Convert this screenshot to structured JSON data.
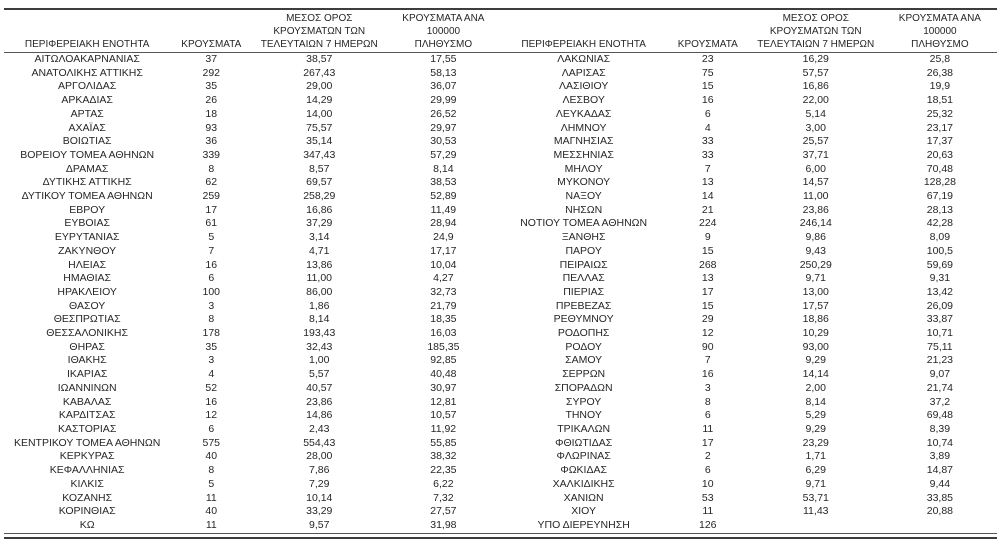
{
  "colors": {
    "text": "#262626",
    "thin_line": "#565656",
    "thick_line": "#3d3d3d",
    "background": "#ffffff"
  },
  "tables": [
    {
      "headers": [
        "ΠΕΡΙΦΕΡΕΙΑΚΗ ΕΝΟΤΗΤΑ",
        "ΚΡΟΥΣΜΑΤΑ",
        "ΜΕΣΟΣ ΟΡΟΣ\nΚΡΟΥΣΜΑΤΩΝ ΤΩΝ\nΤΕΛΕΥΤΑΙΩΝ 7 ΗΜΕΡΩΝ",
        "ΚΡΟΥΣΜΑΤΑ ΑΝΑ 100000\nΠΛΗΘΥΣΜΟ"
      ],
      "rows": [
        [
          "ΑΙΤΩΛΟΑΚΑΡΝΑΝΙΑΣ",
          "37",
          "38,57",
          "17,55"
        ],
        [
          "ΑΝΑΤΟΛΙΚΗΣ ΑΤΤΙΚΗΣ",
          "292",
          "267,43",
          "58,13"
        ],
        [
          "ΑΡΓΟΛΙΔΑΣ",
          "35",
          "29,00",
          "36,07"
        ],
        [
          "ΑΡΚΑΔΙΑΣ",
          "26",
          "14,29",
          "29,99"
        ],
        [
          "ΑΡΤΑΣ",
          "18",
          "14,00",
          "26,52"
        ],
        [
          "ΑΧΑΪΑΣ",
          "93",
          "75,57",
          "29,97"
        ],
        [
          "ΒΟΙΩΤΙΑΣ",
          "36",
          "35,14",
          "30,53"
        ],
        [
          "ΒΟΡΕΙΟΥ ΤΟΜΕΑ ΑΘΗΝΩΝ",
          "339",
          "347,43",
          "57,29"
        ],
        [
          "ΔΡΑΜΑΣ",
          "8",
          "8,57",
          "8,14"
        ],
        [
          "ΔΥΤΙΚΗΣ ΑΤΤΙΚΗΣ",
          "62",
          "69,57",
          "38,53"
        ],
        [
          "ΔΥΤΙΚΟΥ ΤΟΜΕΑ ΑΘΗΝΩΝ",
          "259",
          "258,29",
          "52,89"
        ],
        [
          "ΕΒΡΟΥ",
          "17",
          "16,86",
          "11,49"
        ],
        [
          "ΕΥΒΟΙΑΣ",
          "61",
          "37,29",
          "28,94"
        ],
        [
          "ΕΥΡΥΤΑΝΙΑΣ",
          "5",
          "3,14",
          "24,9"
        ],
        [
          "ΖΑΚΥΝΘΟΥ",
          "7",
          "4,71",
          "17,17"
        ],
        [
          "ΗΛΕΙΑΣ",
          "16",
          "13,86",
          "10,04"
        ],
        [
          "ΗΜΑΘΙΑΣ",
          "6",
          "11,00",
          "4,27"
        ],
        [
          "ΗΡΑΚΛΕΙΟΥ",
          "100",
          "86,00",
          "32,73"
        ],
        [
          "ΘΑΣΟΥ",
          "3",
          "1,86",
          "21,79"
        ],
        [
          "ΘΕΣΠΡΩΤΙΑΣ",
          "8",
          "8,14",
          "18,35"
        ],
        [
          "ΘΕΣΣΑΛΟΝΙΚΗΣ",
          "178",
          "193,43",
          "16,03"
        ],
        [
          "ΘΗΡΑΣ",
          "35",
          "32,43",
          "185,35"
        ],
        [
          "ΙΘΑΚΗΣ",
          "3",
          "1,00",
          "92,85"
        ],
        [
          "ΙΚΑΡΙΑΣ",
          "4",
          "5,57",
          "40,48"
        ],
        [
          "ΙΩΑΝΝΙΝΩΝ",
          "52",
          "40,57",
          "30,97"
        ],
        [
          "ΚΑΒΑΛΑΣ",
          "16",
          "23,86",
          "12,81"
        ],
        [
          "ΚΑΡΔΙΤΣΑΣ",
          "12",
          "14,86",
          "10,57"
        ],
        [
          "ΚΑΣΤΟΡΙΑΣ",
          "6",
          "2,43",
          "11,92"
        ],
        [
          "ΚΕΝΤΡΙΚΟΥ ΤΟΜΕΑ ΑΘΗΝΩΝ",
          "575",
          "554,43",
          "55,85"
        ],
        [
          "ΚΕΡΚΥΡΑΣ",
          "40",
          "28,00",
          "38,32"
        ],
        [
          "ΚΕΦΑΛΛΗΝΙΑΣ",
          "8",
          "7,86",
          "22,35"
        ],
        [
          "ΚΙΛΚΙΣ",
          "5",
          "7,29",
          "6,22"
        ],
        [
          "ΚΟΖΑΝΗΣ",
          "11",
          "10,14",
          "7,32"
        ],
        [
          "ΚΟΡΙΝΘΙΑΣ",
          "40",
          "33,29",
          "27,57"
        ],
        [
          "ΚΩ",
          "11",
          "9,57",
          "31,98"
        ]
      ]
    },
    {
      "headers": [
        "ΠΕΡΙΦΕΡΕΙΑΚΗ ΕΝΟΤΗΤΑ",
        "ΚΡΟΥΣΜΑΤΑ",
        "ΜΕΣΟΣ ΟΡΟΣ\nΚΡΟΥΣΜΑΤΩΝ ΤΩΝ\nΤΕΛΕΥΤΑΙΩΝ 7 ΗΜΕΡΩΝ",
        "ΚΡΟΥΣΜΑΤΑ ΑΝΑ 100000\nΠΛΗΘΥΣΜΟ"
      ],
      "rows": [
        [
          "ΛΑΚΩΝΙΑΣ",
          "23",
          "16,29",
          "25,8"
        ],
        [
          "ΛΑΡΙΣΑΣ",
          "75",
          "57,57",
          "26,38"
        ],
        [
          "ΛΑΣΙΘΙΟΥ",
          "15",
          "16,86",
          "19,9"
        ],
        [
          "ΛΕΣΒΟΥ",
          "16",
          "22,00",
          "18,51"
        ],
        [
          "ΛΕΥΚΑΔΑΣ",
          "6",
          "5,14",
          "25,32"
        ],
        [
          "ΛΗΜΝΟΥ",
          "4",
          "3,00",
          "23,17"
        ],
        [
          "ΜΑΓΝΗΣΙΑΣ",
          "33",
          "25,57",
          "17,37"
        ],
        [
          "ΜΕΣΣΗΝΙΑΣ",
          "33",
          "37,71",
          "20,63"
        ],
        [
          "ΜΗΛΟΥ",
          "7",
          "6,00",
          "70,48"
        ],
        [
          "ΜΥΚΟΝΟΥ",
          "13",
          "14,57",
          "128,28"
        ],
        [
          "ΝΑΞΟΥ",
          "14",
          "11,00",
          "67,19"
        ],
        [
          "ΝΗΣΩΝ",
          "21",
          "23,86",
          "28,13"
        ],
        [
          "ΝΟΤΙΟΥ ΤΟΜΕΑ ΑΘΗΝΩΝ",
          "224",
          "246,14",
          "42,28"
        ],
        [
          "ΞΑΝΘΗΣ",
          "9",
          "9,86",
          "8,09"
        ],
        [
          "ΠΑΡΟΥ",
          "15",
          "9,43",
          "100,5"
        ],
        [
          "ΠΕΙΡΑΙΩΣ",
          "268",
          "250,29",
          "59,69"
        ],
        [
          "ΠΕΛΛΑΣ",
          "13",
          "9,71",
          "9,31"
        ],
        [
          "ΠΙΕΡΙΑΣ",
          "17",
          "13,00",
          "13,42"
        ],
        [
          "ΠΡΕΒΕΖΑΣ",
          "15",
          "17,57",
          "26,09"
        ],
        [
          "ΡΕΘΥΜΝΟΥ",
          "29",
          "18,86",
          "33,87"
        ],
        [
          "ΡΟΔΟΠΗΣ",
          "12",
          "10,29",
          "10,71"
        ],
        [
          "ΡΟΔΟΥ",
          "90",
          "93,00",
          "75,11"
        ],
        [
          "ΣΑΜΟΥ",
          "7",
          "9,29",
          "21,23"
        ],
        [
          "ΣΕΡΡΩΝ",
          "16",
          "14,14",
          "9,07"
        ],
        [
          "ΣΠΟΡΑΔΩΝ",
          "3",
          "2,00",
          "21,74"
        ],
        [
          "ΣΥΡΟΥ",
          "8",
          "8,14",
          "37,2"
        ],
        [
          "ΤΗΝΟΥ",
          "6",
          "5,29",
          "69,48"
        ],
        [
          "ΤΡΙΚΑΛΩΝ",
          "11",
          "9,29",
          "8,39"
        ],
        [
          "ΦΘΙΩΤΙΔΑΣ",
          "17",
          "23,29",
          "10,74"
        ],
        [
          "ΦΛΩΡΙΝΑΣ",
          "2",
          "1,71",
          "3,89"
        ],
        [
          "ΦΩΚΙΔΑΣ",
          "6",
          "6,29",
          "14,87"
        ],
        [
          "ΧΑΛΚΙΔΙΚΗΣ",
          "10",
          "9,71",
          "9,44"
        ],
        [
          "ΧΑΝΙΩΝ",
          "53",
          "53,71",
          "33,85"
        ],
        [
          "ΧΙΟΥ",
          "11",
          "11,43",
          "20,88"
        ],
        [
          "ΥΠΟ ΔΙΕΡΕΥΝΗΣΗ",
          "126",
          "",
          ""
        ]
      ]
    }
  ]
}
